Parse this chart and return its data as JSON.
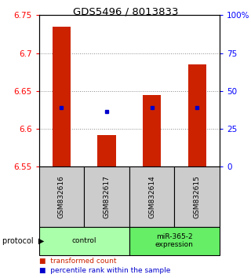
{
  "title": "GDS5496 / 8013833",
  "samples": [
    "GSM832616",
    "GSM832617",
    "GSM832614",
    "GSM832615"
  ],
  "groups": [
    {
      "name": "control",
      "color": "#aaffaa"
    },
    {
      "name": "miR-365-2\nexpression",
      "color": "#66ee66"
    }
  ],
  "bar_bottoms": [
    6.55,
    6.55,
    6.55,
    6.55
  ],
  "bar_tops": [
    6.735,
    6.592,
    6.645,
    6.685
  ],
  "percentile_values": [
    6.628,
    6.623,
    6.628,
    6.628
  ],
  "ylim": [
    6.55,
    6.75
  ],
  "yticks_left": [
    6.55,
    6.6,
    6.65,
    6.7,
    6.75
  ],
  "ytick_labels_left": [
    "6.55",
    "6.6",
    "6.65",
    "6.7",
    "6.75"
  ],
  "yticks_right_pct": [
    0,
    25,
    50,
    75,
    100
  ],
  "ytick_labels_right": [
    "0",
    "25",
    "50",
    "75",
    "100%"
  ],
  "bar_color": "#cc2200",
  "dot_color": "#0000cc",
  "grid_color": "#888888",
  "sample_box_color": "#cccccc",
  "legend_red": "#cc2200",
  "legend_blue": "#0000cc",
  "bar_width": 0.4
}
